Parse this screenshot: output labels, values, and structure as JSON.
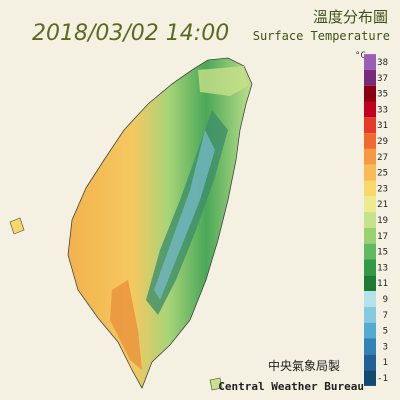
{
  "header": {
    "datetime": "2018/03/02 14:00",
    "title": "溫度分布圖",
    "subtitle": "Surface Temperature"
  },
  "legend": {
    "unit": "°C",
    "levels": [
      {
        "label": "38",
        "color": "#9a5fb4"
      },
      {
        "label": "37",
        "color": "#7a2a7a"
      },
      {
        "label": "35",
        "color": "#8b0010"
      },
      {
        "label": "33",
        "color": "#c40020"
      },
      {
        "label": "31",
        "color": "#e63a2a"
      },
      {
        "label": "29",
        "color": "#f06a30"
      },
      {
        "label": "27",
        "color": "#f59a40"
      },
      {
        "label": "25",
        "color": "#f8bb55"
      },
      {
        "label": "23",
        "color": "#f7d868"
      },
      {
        "label": "21",
        "color": "#eeea90"
      },
      {
        "label": "19",
        "color": "#c6e28a"
      },
      {
        "label": "17",
        "color": "#9ad272"
      },
      {
        "label": "15",
        "color": "#62ba60"
      },
      {
        "label": "13",
        "color": "#329a44"
      },
      {
        "label": "11",
        "color": "#1f7a34"
      },
      {
        "label": "9",
        "color": "#b4e2ea"
      },
      {
        "label": "7",
        "color": "#84cae0"
      },
      {
        "label": "5",
        "color": "#54aad0"
      },
      {
        "label": "3",
        "color": "#3282b8"
      },
      {
        "label": "1",
        "color": "#206298"
      },
      {
        "label": "-1",
        "color": "#104a72"
      }
    ]
  },
  "credit": {
    "chinese": "中央氣象局製",
    "english": "Central Weather Bureau"
  }
}
